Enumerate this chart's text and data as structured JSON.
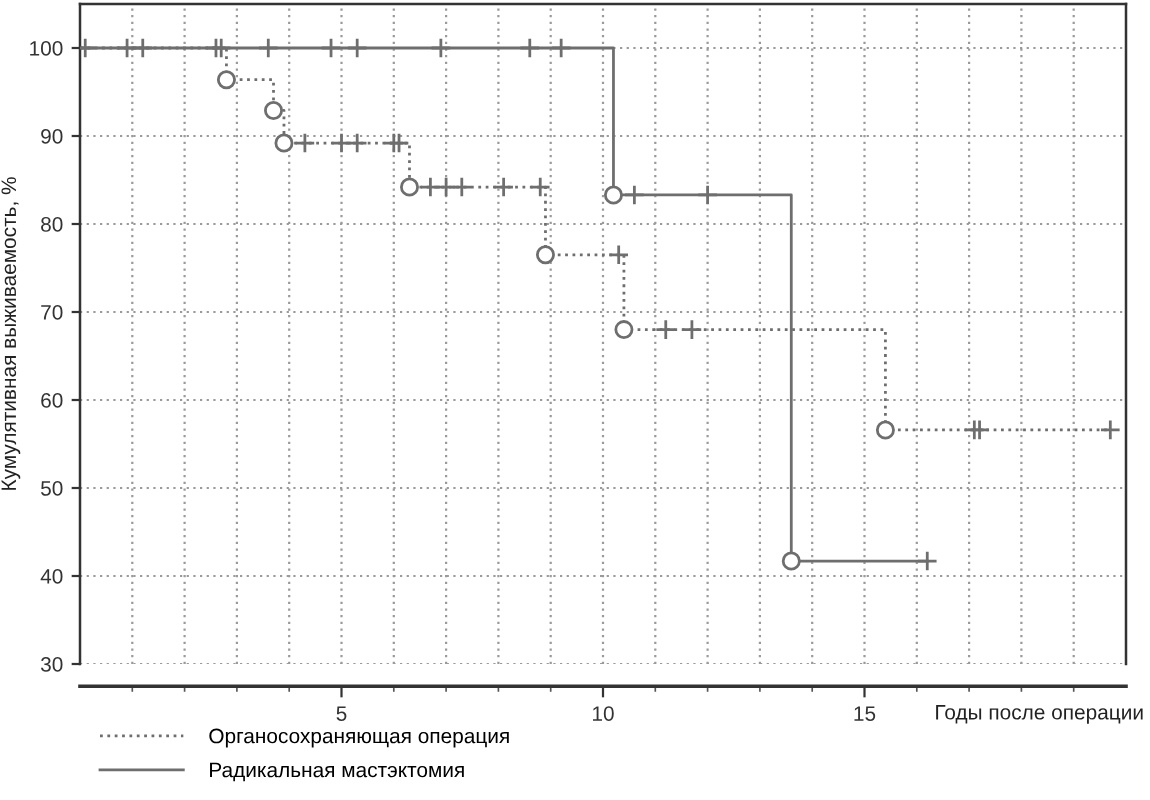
{
  "chart_data": {
    "type": "step",
    "xlabel": "Годы после операции",
    "ylabel": "Кумулятивная выживаемость, %",
    "xlim": [
      0,
      20
    ],
    "ylim": [
      30,
      105
    ],
    "xticks": [
      {
        "value": 1,
        "label": null
      },
      {
        "value": 2,
        "label": null
      },
      {
        "value": 3,
        "label": null
      },
      {
        "value": 4,
        "label": null
      },
      5,
      {
        "value": 6,
        "label": null
      },
      {
        "value": 7,
        "label": null
      },
      {
        "value": 8,
        "label": null
      },
      {
        "value": 9,
        "label": null
      },
      10,
      {
        "value": 11,
        "label": null
      },
      {
        "value": 12,
        "label": null
      },
      {
        "value": 13,
        "label": null
      },
      {
        "value": 14,
        "label": null
      },
      15,
      {
        "value": 16,
        "label": null
      },
      {
        "value": 17,
        "label": null
      },
      {
        "value": 18,
        "label": null
      },
      {
        "value": 19,
        "label": null
      }
    ],
    "yticks": [
      30,
      40,
      50,
      60,
      70,
      80,
      90,
      100
    ],
    "grid": true,
    "legend": "bottom left",
    "series": [
      {
        "name": "Органосохраняющая операция",
        "line_style": "dotted",
        "color": "#6e6e6e",
        "x": [
          0,
          2.8,
          3.7,
          3.9,
          6.3,
          8.9,
          10.4,
          15.4,
          19.7
        ],
        "values": [
          100,
          96.4,
          92.9,
          89.2,
          84.2,
          76.5,
          68.0,
          56.6,
          56.6
        ]
      },
      {
        "type": "scatter",
        "marker": "circle",
        "color": "#6e6e6e",
        "x": [
          2.8,
          3.7,
          3.9,
          6.3,
          8.9,
          10.4,
          15.4
        ],
        "values": [
          96.4,
          92.9,
          89.2,
          84.2,
          76.5,
          68.0,
          56.6
        ]
      },
      {
        "type": "scatter",
        "marker": "cross",
        "color": "#6e6e6e",
        "x": [
          4.3,
          5.0,
          5.3,
          6.0,
          6.1,
          6.7,
          7.0,
          7.3,
          8.1,
          8.8,
          10.3,
          11.2,
          11.7,
          17.1,
          17.2,
          19.7
        ],
        "values": [
          89.2,
          89.2,
          89.2,
          89.2,
          89.2,
          84.2,
          84.2,
          84.2,
          84.2,
          84.2,
          76.5,
          68.0,
          68.0,
          56.6,
          56.6,
          56.6
        ]
      },
      {
        "name": "Радикальная мастэктомия",
        "line_style": "solid",
        "color": "#6e6e6e",
        "x": [
          0,
          10.2,
          13.6,
          16.2
        ],
        "values": [
          100,
          83.3,
          41.7,
          41.7
        ]
      },
      {
        "type": "scatter",
        "marker": "circle",
        "color": "#6e6e6e",
        "x": [
          10.2,
          13.6
        ],
        "values": [
          83.3,
          41.7
        ]
      },
      {
        "type": "scatter",
        "marker": "cross",
        "color": "#6e6e6e",
        "x": [
          0.1,
          0.9,
          1.2,
          2.6,
          2.7,
          3.6,
          4.8,
          5.3,
          6.9,
          8.6,
          9.2,
          10.6,
          12.0,
          16.2
        ],
        "values": [
          100,
          100,
          100,
          100,
          100,
          100,
          100,
          100,
          100,
          100,
          100,
          83.3,
          83.3,
          41.7
        ]
      }
    ]
  }
}
